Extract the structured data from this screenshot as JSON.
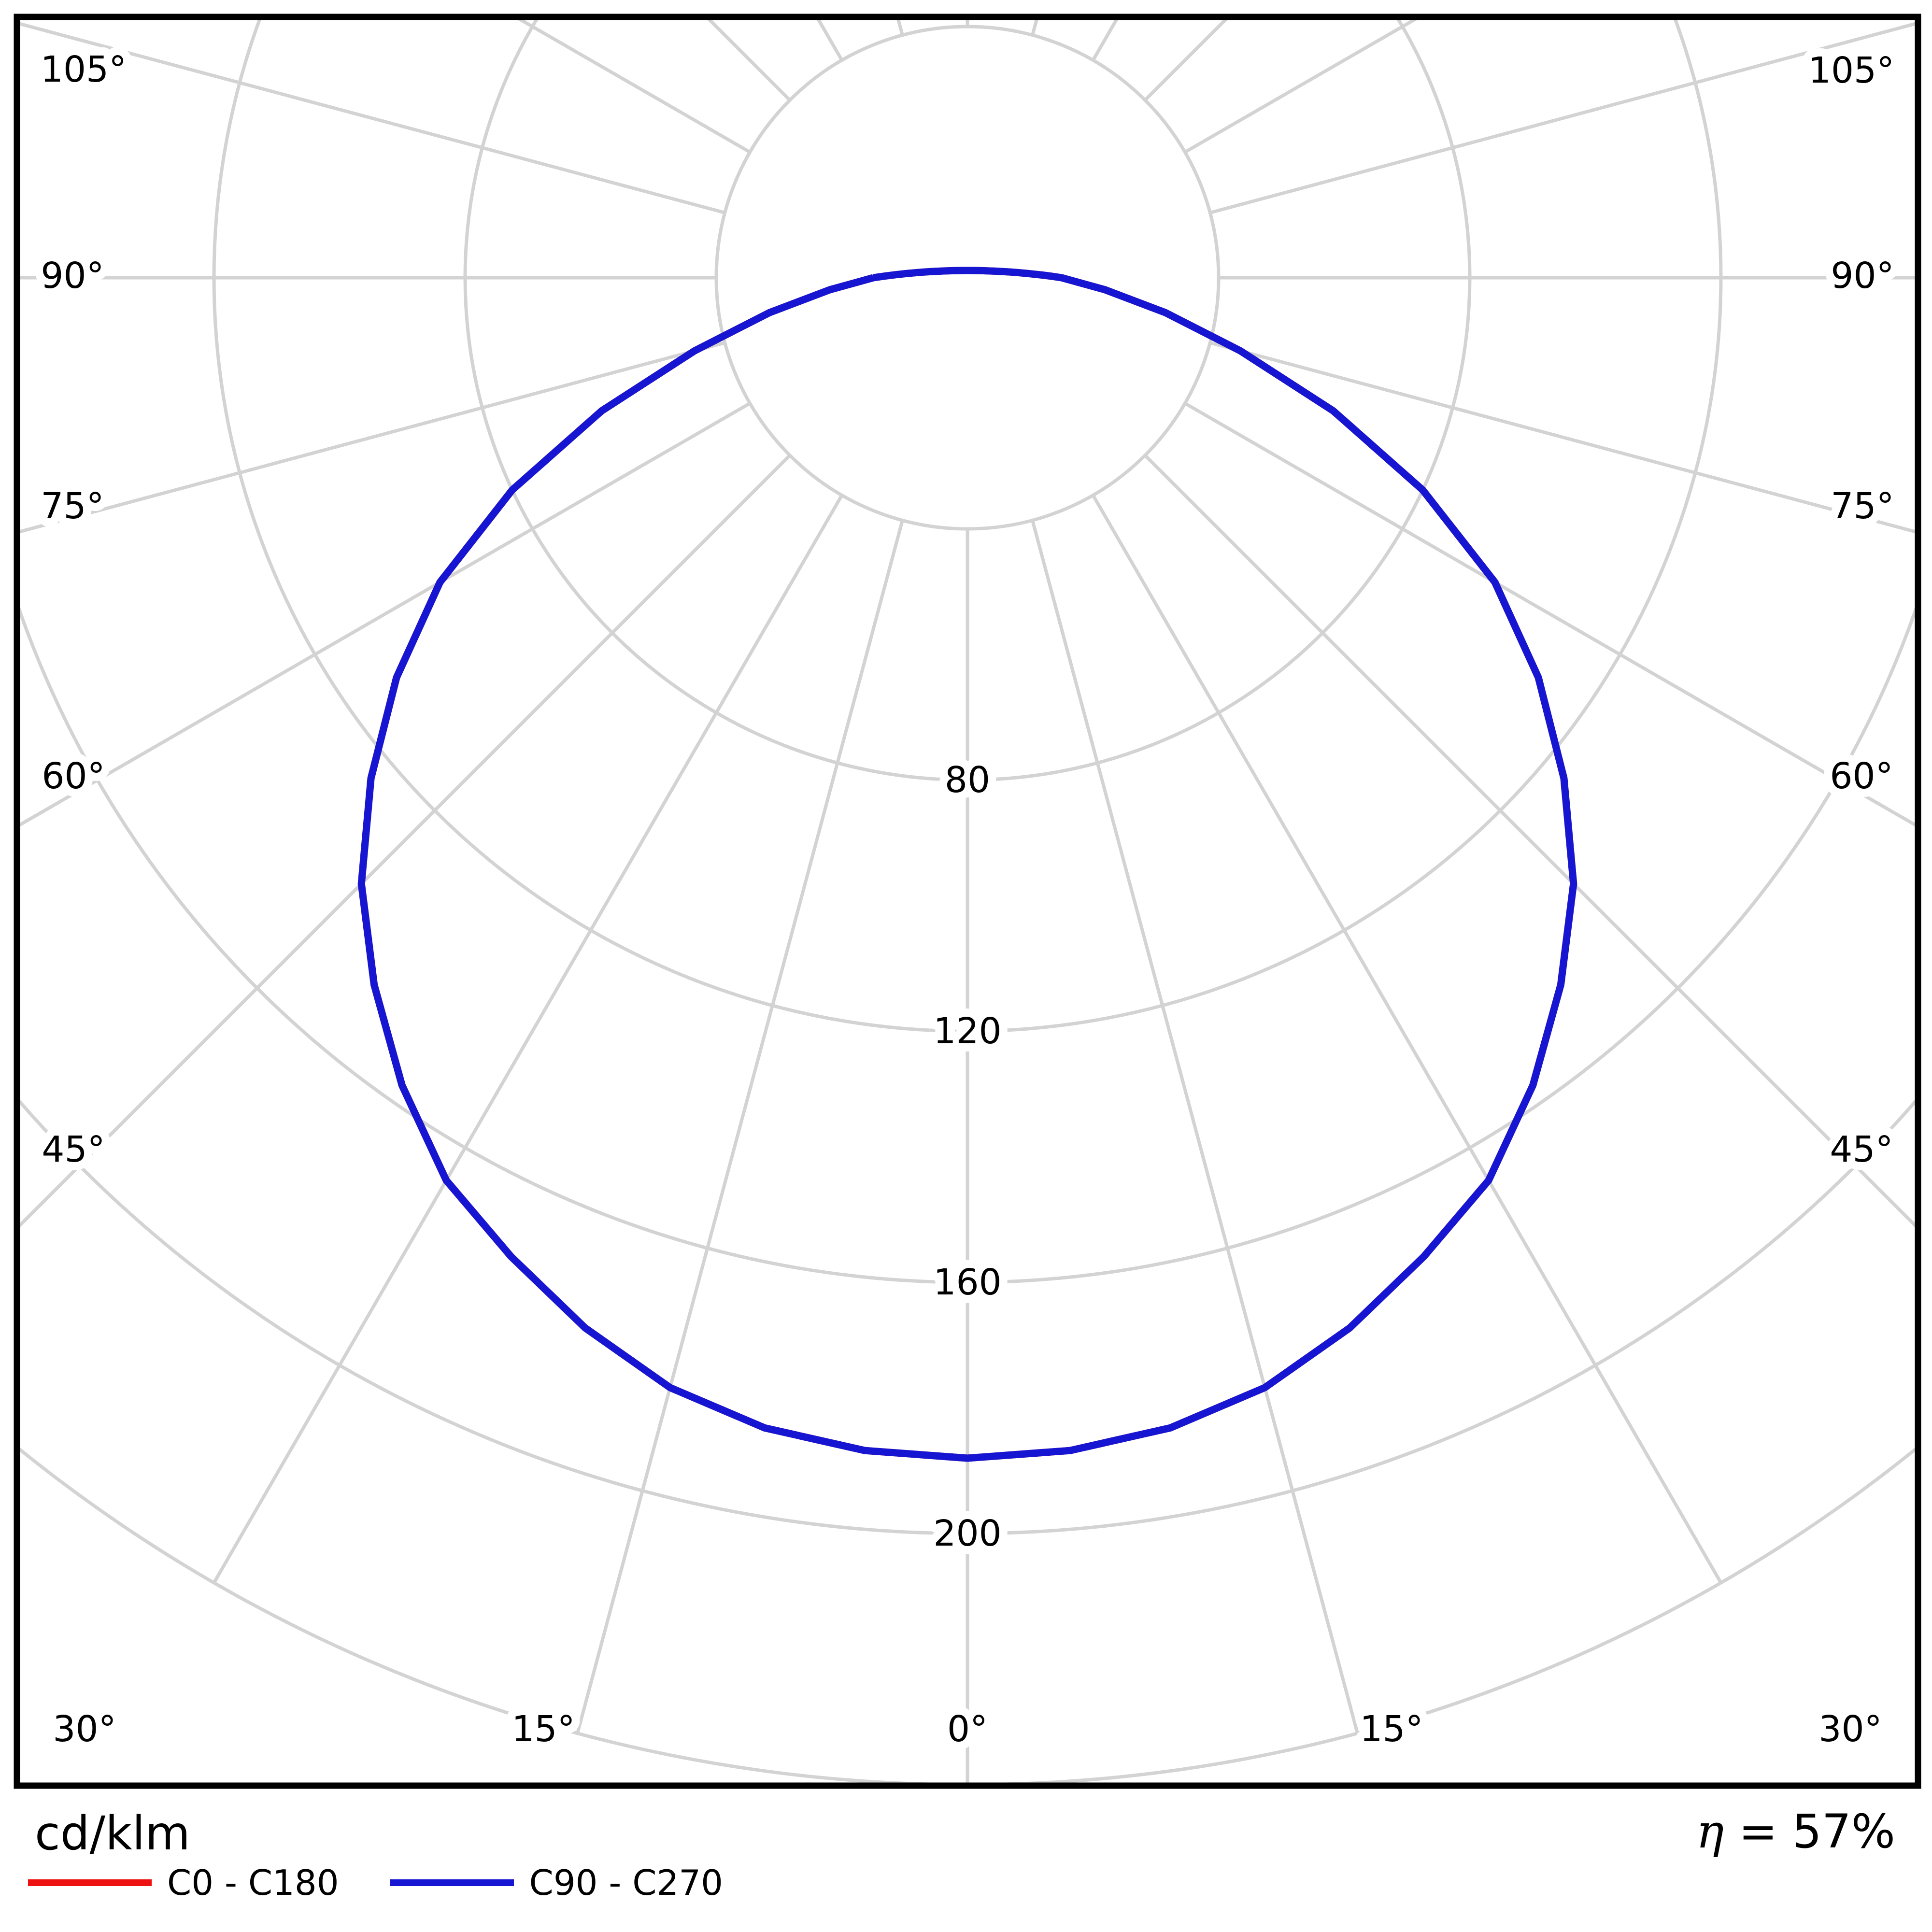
{
  "page": {
    "background": "#ffffff"
  },
  "chart_data": {
    "type": "line",
    "projection": "polar",
    "description": "Luminous intensity distribution curve (photometric polar diagram), 0° at nadir (bottom), angles to 105° on both sides",
    "unit_label": "cd/klm",
    "efficiency_eta": "η",
    "efficiency_value": "= 57%",
    "efficiency_label": "η = 57%",
    "angle_axis": {
      "left_labels": [
        "105°",
        "90°",
        "75°",
        "60°",
        "45°"
      ],
      "bottom_labels": [
        "30°",
        "15°",
        "0°",
        "15°",
        "30°"
      ],
      "right_labels": [
        "105°",
        "90°",
        "75°",
        "60°",
        "45°"
      ],
      "spoke_step_deg": 15,
      "max_labeled_deg": 105
    },
    "radial_axis": {
      "tick_values": [
        40,
        80,
        120,
        160,
        200,
        240
      ],
      "label_values": [
        80,
        120,
        160,
        200
      ],
      "labels": [
        "80",
        "120",
        "160",
        "200"
      ],
      "max": 240
    },
    "series": [
      {
        "name": "C0 - C180",
        "color": "#ee1111",
        "symmetric": true,
        "gamma_deg": [
          0,
          5,
          10,
          15,
          20,
          25,
          30,
          35,
          40,
          45,
          50,
          55,
          60,
          65,
          70,
          75,
          80,
          85,
          90
        ],
        "cd_per_klm": [
          188,
          187.5,
          186,
          183,
          178,
          172,
          166,
          157,
          147,
          136.5,
          124,
          111,
          97,
          80,
          62,
          45,
          32,
          22,
          15
        ],
        "note": "coincides with C90 - C270 curve (hidden beneath it)"
      },
      {
        "name": "C90 - C270",
        "color": "#1515d2",
        "symmetric": true,
        "gamma_deg": [
          0,
          5,
          10,
          15,
          20,
          25,
          30,
          35,
          40,
          45,
          50,
          55,
          60,
          65,
          70,
          75,
          80,
          85,
          90
        ],
        "cd_per_klm": [
          188,
          187.5,
          186,
          183,
          178,
          172,
          166,
          157,
          147,
          136.5,
          124,
          111,
          97,
          80,
          62,
          45,
          32,
          22,
          15
        ]
      }
    ],
    "legend": {
      "items": [
        {
          "label": "C0 - C180",
          "color": "#ee1111"
        },
        {
          "label": "C90 - C270",
          "color": "#1515d2"
        }
      ]
    },
    "grid_color": "#d3d3d3",
    "frame_color": "#000000"
  }
}
